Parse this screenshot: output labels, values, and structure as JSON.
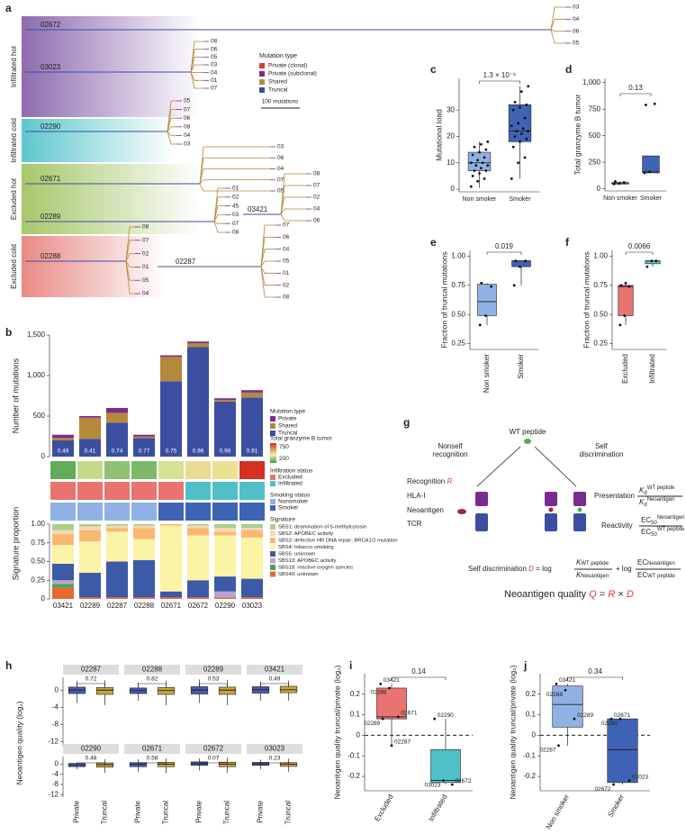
{
  "tree": {
    "panel": "a",
    "groups": [
      "Infiltrated hot",
      "Infiltrated cold",
      "Excluded hot",
      "Excluded cold"
    ],
    "patients": [
      {
        "name": "02672",
        "leaves": [
          "03",
          "04",
          "06",
          "05"
        ]
      },
      {
        "name": "03023",
        "leaves": [
          "08",
          "06",
          "05",
          "03",
          "04",
          "01",
          "07"
        ]
      },
      {
        "name": "02290",
        "leaves": [
          "05",
          "07",
          "06",
          "08",
          "04",
          "03"
        ]
      },
      {
        "name": "02671",
        "leaves": [
          "03",
          "06",
          "04",
          "07",
          "05"
        ]
      },
      {
        "name": "02289",
        "leaves": [
          "01",
          "02",
          "45",
          "03",
          "07",
          "08"
        ]
      },
      {
        "name": "03421",
        "leaves": [
          "08",
          "07",
          "02",
          "04",
          "06"
        ]
      },
      {
        "name": "02288",
        "leaves": [
          "08",
          "07",
          "02",
          "01",
          "05",
          "04"
        ]
      },
      {
        "name": "02287",
        "leaves": [
          "07",
          "06",
          "04",
          "05",
          "01",
          "02",
          "08"
        ]
      }
    ],
    "legend_title": "Mutation type",
    "legend": [
      {
        "name": "Private (clonal)",
        "color": "#d93a3a"
      },
      {
        "name": "Private (subclonal)",
        "color": "#7a2b8f"
      },
      {
        "name": "Shared",
        "color": "#b5883a"
      },
      {
        "name": "Truncal",
        "color": "#3b4ea1"
      }
    ],
    "scale_label": "100 mutations"
  },
  "diagram": {
    "panel": "g",
    "wt_peptide": "WT peptide",
    "nonself": [
      "Nonself",
      "recognition"
    ],
    "self": [
      "Self",
      "discrimination"
    ],
    "recognition": [
      "Recognition",
      "R"
    ],
    "hla": "HLA-I",
    "neoantigen": "Neoantigen",
    "tcr": "TCR",
    "presentation": "Presentation",
    "reactivity": "Reactivity",
    "k": "K",
    "d_sub": "d",
    "wt": "WT peptide",
    "neo": "Neoantigen",
    "ec": "EC",
    "ec_sub": "50",
    "self_disc": [
      "Self discrimination",
      "D",
      "= log",
      "+ log"
    ],
    "quality": [
      "Neoantigen quality",
      "Q",
      "=",
      "R",
      "×",
      "D"
    ]
  },
  "chart_data": [
    {
      "type": "stacked_bar",
      "panel": "b",
      "ylabel": "Number of mutations",
      "categories": [
        "03421",
        "02289",
        "02287",
        "02288",
        "02671",
        "02672",
        "02290",
        "03023"
      ],
      "series": [
        {
          "name": "Truncal",
          "color": "#3b4ea1",
          "values": [
            200,
            220,
            420,
            230,
            930,
            1350,
            680,
            730
          ]
        },
        {
          "name": "Shared",
          "color": "#b5883a",
          "values": [
            30,
            260,
            120,
            20,
            300,
            50,
            20,
            60
          ]
        },
        {
          "name": "Private",
          "color": "#7b2d8e",
          "values": [
            40,
            20,
            60,
            20,
            20,
            20,
            20,
            30
          ]
        }
      ],
      "fraction_labels": [
        0.49,
        0.41,
        0.74,
        0.77,
        0.75,
        0.96,
        0.96,
        0.91
      ],
      "legend_title": "Mutation type",
      "ylim": [
        0,
        1500
      ],
      "yticks": [
        0,
        500,
        {
          "value": 1000,
          "label": "1,000"
        },
        {
          "value": 1500,
          "label": "1,500"
        }
      ]
    },
    {
      "type": "heatmap_rows",
      "rows": [
        {
          "name": "Total granzyme B tumor",
          "values": [
            40,
            150,
            90,
            70,
            170,
            260,
            250,
            800
          ],
          "legend_ticks": [
            750,
            200
          ]
        },
        {
          "name": "Infiltration status",
          "values": [
            "Excluded",
            "Excluded",
            "Excluded",
            "Excluded",
            "Excluded",
            "Infiltrated",
            "Infiltrated",
            "Infiltrated"
          ],
          "levels": [
            "Excluded",
            "Infiltrated"
          ],
          "colors": [
            "#e8736f",
            "#4fc0c8"
          ]
        },
        {
          "name": "Smoking status",
          "values": [
            "Nonsmoker",
            "Nonsmoker",
            "Nonsmoker",
            "Nonsmoker",
            "Smoker",
            "Smoker",
            "Smoker",
            "Smoker"
          ],
          "levels": [
            "Nonsmoker",
            "Smoker"
          ],
          "colors": [
            "#8fb1e3",
            "#3f63b5"
          ]
        }
      ]
    },
    {
      "type": "stacked_proportion",
      "ylabel": "Signature proportion",
      "legend_title": "Signature",
      "categories": [
        "03421",
        "02289",
        "02287",
        "02288",
        "02671",
        "02672",
        "02290",
        "03023"
      ],
      "series": [
        {
          "name": "SBS1: deamination of 5-methylcytosin",
          "color": "#a8d08d",
          "values": [
            0.08,
            0.03,
            0.02,
            0.02,
            0,
            0.02,
            0.05,
            0.05
          ]
        },
        {
          "name": "SBS2: APOBEC activity",
          "color": "#f7d7b5",
          "values": [
            0.05,
            0.05,
            0.03,
            0.03,
            0,
            0.03,
            0.05,
            0.03
          ]
        },
        {
          "name": "SBS3: defective HR DNA repair; BRCA1/2 mutation",
          "color": "#f9b872",
          "values": [
            0.15,
            0.15,
            0.05,
            0.15,
            0.02,
            0.1,
            0.05,
            0.1
          ]
        },
        {
          "name": "SBS4: tobacco smoking",
          "color": "#fbf3a6",
          "values": [
            0.25,
            0.42,
            0.4,
            0.28,
            0.88,
            0.6,
            0.55,
            0.55
          ]
        },
        {
          "name": "SBS5: unknown",
          "color": "#3c5aa6",
          "values": [
            0.22,
            0.33,
            0.48,
            0.5,
            0.08,
            0.23,
            0.2,
            0.25
          ]
        },
        {
          "name": "SBS13: APOBEC activity",
          "color": "#b7a6d1",
          "values": [
            0.05,
            0,
            0,
            0,
            0,
            0,
            0.08,
            0
          ]
        },
        {
          "name": "SBS18: reactive oxygen species",
          "color": "#4ea15c",
          "values": [
            0.05,
            0,
            0,
            0,
            0,
            0,
            0,
            0
          ]
        },
        {
          "name": "SBS40: unknown",
          "color": "#e8692f",
          "values": [
            0.15,
            0.02,
            0.02,
            0.02,
            0.02,
            0.02,
            0.02,
            0.02
          ]
        }
      ],
      "ylim": [
        0,
        1
      ],
      "yticks": [
        0,
        0.25,
        {
          "value": 0.5,
          "label": "0.50"
        },
        0.75,
        {
          "value": 1,
          "label": "1.00"
        }
      ]
    },
    {
      "type": "box",
      "panel": "c",
      "ylabel": "Mutational load",
      "categories": [
        "Non smoker",
        "Smoker"
      ],
      "colors": [
        "#8fb1e3",
        "#3f63b5"
      ],
      "boxes": [
        {
          "low": 0.5,
          "q1": 7,
          "median": 10,
          "q3": 14,
          "high": 18
        },
        {
          "low": 4,
          "q1": 18,
          "median": 22,
          "q3": 32,
          "high": 39
        }
      ],
      "points": [
        [
          1,
          3,
          4,
          5,
          6,
          7,
          7,
          8,
          9,
          9,
          10,
          10,
          11,
          12,
          13,
          14,
          15,
          16,
          17,
          18
        ],
        [
          4,
          10,
          12,
          16,
          18,
          19,
          20,
          21,
          22,
          22,
          23,
          24,
          25,
          27,
          30,
          31,
          32,
          33,
          37,
          39
        ]
      ],
      "p_value": "1.3 × 10⁻⁶",
      "ylim": [
        -1,
        42
      ],
      "yticks": [
        0,
        10,
        20,
        30
      ]
    },
    {
      "type": "box",
      "panel": "d",
      "ylabel": "Total granzyme B tumor",
      "categories": [
        "Non smoker",
        "Smoker"
      ],
      "colors": [
        "#8fb1e3",
        "#3f63b5"
      ],
      "boxes": [
        {
          "low": 40,
          "q1": 45,
          "median": 55,
          "q3": 60,
          "high": 70
        },
        {
          "low": 150,
          "q1": 150,
          "median": 160,
          "q3": 310,
          "high": 310
        }
      ],
      "points": [
        [
          45,
          50,
          60,
          70
        ],
        [
          150,
          160,
          800,
          790
        ]
      ],
      "p_value": "0.13",
      "ylim": [
        -20,
        1040
      ],
      "yticks": [
        0,
        250,
        500,
        750,
        {
          "value": 1000,
          "label": "1,000"
        }
      ]
    },
    {
      "type": "box",
      "panel": "e",
      "ylabel": "Fraction of truncal mutations",
      "categories": [
        "Non smoker",
        "Smoker"
      ],
      "colors": [
        "#8fb1e3",
        "#3f63b5"
      ],
      "boxes": [
        {
          "low": 0.41,
          "q1": 0.49,
          "median": 0.61,
          "q3": 0.76,
          "high": 0.77
        },
        {
          "low": 0.75,
          "q1": 0.91,
          "median": 0.96,
          "q3": 0.96,
          "high": 0.96
        }
      ],
      "points": [
        [
          0.41,
          0.49,
          0.74,
          0.77
        ],
        [
          0.75,
          0.91,
          0.96,
          0.96
        ]
      ],
      "p_value": "0.019",
      "ylim": [
        0.2,
        1.05
      ],
      "yticks": [
        0.25,
        {
          "value": 0.5,
          "label": "0.50"
        },
        0.75,
        {
          "value": 1,
          "label": "1.00"
        }
      ]
    },
    {
      "type": "box",
      "panel": "f",
      "ylabel": "Fraction of truncal mutations",
      "categories": [
        "Excluded",
        "Infiltrated"
      ],
      "colors": [
        "#e8736f",
        "#4fc0c8"
      ],
      "boxes": [
        {
          "low": 0.41,
          "q1": 0.49,
          "median": 0.74,
          "q3": 0.75,
          "high": 0.77
        },
        {
          "low": 0.91,
          "q1": 0.935,
          "median": 0.96,
          "q3": 0.96,
          "high": 0.96
        }
      ],
      "points": [
        [
          0.41,
          0.49,
          0.74,
          0.75,
          0.77
        ],
        [
          0.91,
          0.96,
          0.96
        ]
      ],
      "p_value": "0.0066",
      "ylim": [
        0.2,
        1.05
      ],
      "yticks": [
        0.25,
        {
          "value": 0.5,
          "label": "0.50"
        },
        0.75,
        {
          "value": 1,
          "label": "1.00"
        }
      ]
    },
    {
      "type": "box_facets",
      "panel": "h",
      "ylabel": "Neoantigen quality (log₂)",
      "categories": [
        "Private",
        "Truncal"
      ],
      "colors": [
        "#4a5bb0",
        "#c9a53c"
      ],
      "facets": [
        {
          "name": "02287",
          "p_value": "0.72",
          "boxes": [
            {
              "low": -3,
              "q1": -0.8,
              "median": 0,
              "q3": 0.7,
              "high": 2.2
            },
            {
              "low": -3.5,
              "q1": -1,
              "median": 0,
              "q3": 0.6,
              "high": 2.3
            }
          ]
        },
        {
          "name": "02288",
          "p_value": "0.82",
          "boxes": [
            {
              "low": -2.5,
              "q1": -0.8,
              "median": -0.1,
              "q3": 0.5,
              "high": 1.8
            },
            {
              "low": -3.5,
              "q1": -1,
              "median": -0.1,
              "q3": 0.6,
              "high": 2.2
            }
          ]
        },
        {
          "name": "02289",
          "p_value": "0.53",
          "boxes": [
            {
              "low": -3,
              "q1": -0.9,
              "median": 0,
              "q3": 0.8,
              "high": 2.5
            },
            {
              "low": -3.5,
              "q1": -1,
              "median": 0,
              "q3": 0.7,
              "high": 2.4
            }
          ]
        },
        {
          "name": "03421",
          "p_value": "0.49",
          "boxes": [
            {
              "low": -2.5,
              "q1": -0.7,
              "median": 0.1,
              "q3": 0.8,
              "high": 2
            },
            {
              "low": -2.5,
              "q1": -0.6,
              "median": 0.1,
              "q3": 0.9,
              "high": 2.2
            }
          ]
        },
        {
          "name": "02290",
          "p_value": "0.48",
          "boxes": [
            {
              "low": -2,
              "q1": -1,
              "median": -0.3,
              "q3": 0.3,
              "high": 0.6
            },
            {
              "low": -3.5,
              "q1": -1.2,
              "median": -0.2,
              "q3": 0.5,
              "high": 2
            }
          ]
        },
        {
          "name": "02671",
          "p_value": "0.58",
          "boxes": [
            {
              "low": -3,
              "q1": -1,
              "median": 0,
              "q3": 0.6,
              "high": 2
            },
            {
              "low": -3.5,
              "q1": -1,
              "median": 0,
              "q3": 0.7,
              "high": 2.3
            }
          ]
        },
        {
          "name": "02672",
          "p_value": "0.07",
          "boxes": [
            {
              "low": -2.5,
              "q1": -0.5,
              "median": 0.2,
              "q3": 0.9,
              "high": 2.3
            },
            {
              "low": -3.5,
              "q1": -1,
              "median": 0,
              "q3": 0.8,
              "high": 2.5
            }
          ]
        },
        {
          "name": "03023",
          "p_value": "0.23",
          "boxes": [
            {
              "low": -2,
              "q1": -0.5,
              "median": 0.1,
              "q3": 0.7,
              "high": 1.8
            },
            {
              "low": -3,
              "q1": -0.9,
              "median": 0,
              "q3": 0.6,
              "high": 2.2
            }
          ]
        }
      ],
      "ylim": [
        -13,
        3
      ],
      "yticks": [
        -12,
        -8,
        -4,
        0
      ]
    },
    {
      "type": "box",
      "panel": "i",
      "ylabel": "Neoantigen quality truncal/private (log₂)",
      "categories": [
        "Excluded",
        "Infiltrated"
      ],
      "colors": [
        "#e8736f",
        "#4fc0c8"
      ],
      "boxes": [
        {
          "low": -0.05,
          "q1": 0.08,
          "median": 0.09,
          "q3": 0.23,
          "high": 0.25
        },
        {
          "low": -0.24,
          "q1": -0.23,
          "median": -0.22,
          "q3": -0.07,
          "high": 0.08
        }
      ],
      "points": [
        [
          0.25,
          0.23,
          0.09,
          0.08,
          -0.05
        ],
        [
          0.08,
          -0.22,
          -0.24
        ]
      ],
      "point_labels": [
        [
          "03421",
          "02288",
          "02671",
          "02289",
          "02287"
        ],
        [
          "02290",
          "03023",
          "02672"
        ]
      ],
      "p_value": "0.14",
      "hline": 0,
      "ylim": [
        -0.27,
        0.3
      ],
      "yticks": [
        -0.2,
        -0.1,
        0,
        0.1,
        0.2
      ]
    },
    {
      "type": "box",
      "panel": "j",
      "ylabel": "Neoantigen quality truncal/private (log₂)",
      "categories": [
        "Non smoker",
        "Smoker"
      ],
      "colors": [
        "#8fb1e3",
        "#3f63b5"
      ],
      "boxes": [
        {
          "low": -0.05,
          "q1": 0.04,
          "median": 0.15,
          "q3": 0.24,
          "high": 0.25
        },
        {
          "low": -0.24,
          "q1": -0.23,
          "median": -0.07,
          "q3": 0.08,
          "high": 0.08
        }
      ],
      "points": [
        [
          0.25,
          0.22,
          0.08,
          -0.05
        ],
        [
          0.08,
          0.08,
          -0.22,
          -0.24
        ]
      ],
      "point_labels": [
        [
          "03421",
          "02288",
          "02289",
          "02287"
        ],
        [
          "02671",
          "02290",
          "03023",
          "02672"
        ]
      ],
      "p_value": "0.34",
      "hline": 0,
      "ylim": [
        -0.27,
        0.3
      ],
      "yticks": [
        -0.2,
        -0.1,
        0,
        0.1,
        0.2
      ]
    }
  ]
}
